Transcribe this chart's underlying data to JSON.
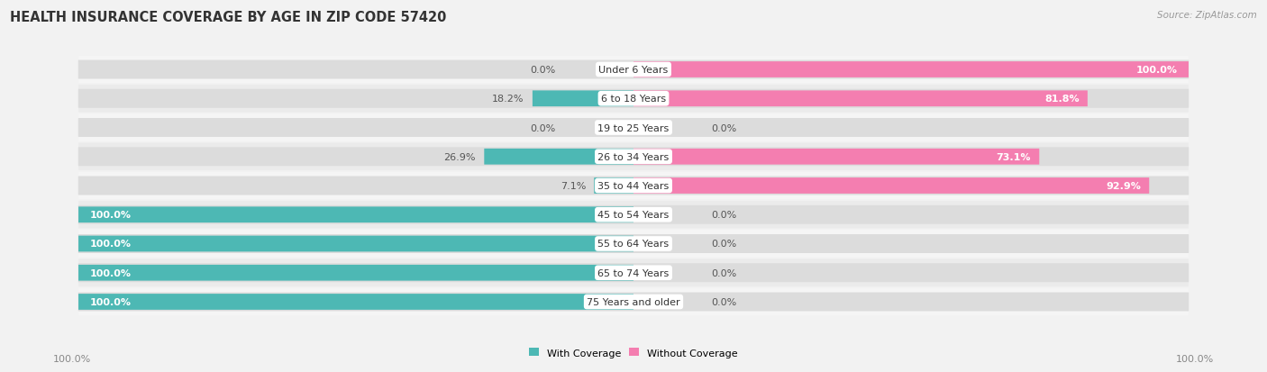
{
  "title": "HEALTH INSURANCE COVERAGE BY AGE IN ZIP CODE 57420",
  "source": "Source: ZipAtlas.com",
  "categories": [
    "Under 6 Years",
    "6 to 18 Years",
    "19 to 25 Years",
    "26 to 34 Years",
    "35 to 44 Years",
    "45 to 54 Years",
    "55 to 64 Years",
    "65 to 74 Years",
    "75 Years and older"
  ],
  "with_coverage": [
    0.0,
    18.2,
    0.0,
    26.9,
    7.1,
    100.0,
    100.0,
    100.0,
    100.0
  ],
  "without_coverage": [
    100.0,
    81.8,
    0.0,
    73.1,
    92.9,
    0.0,
    0.0,
    0.0,
    0.0
  ],
  "color_with": "#4db8b4",
  "color_without": "#f47eb0",
  "bg_row_light": "#ebebeb",
  "bg_row_white": "#f8f8f8",
  "bar_bg": "#e8e8e8",
  "title_fontsize": 10.5,
  "source_fontsize": 7.5,
  "label_fontsize": 8,
  "cat_fontsize": 8,
  "legend_fontsize": 8,
  "axis_label_fontsize": 8
}
